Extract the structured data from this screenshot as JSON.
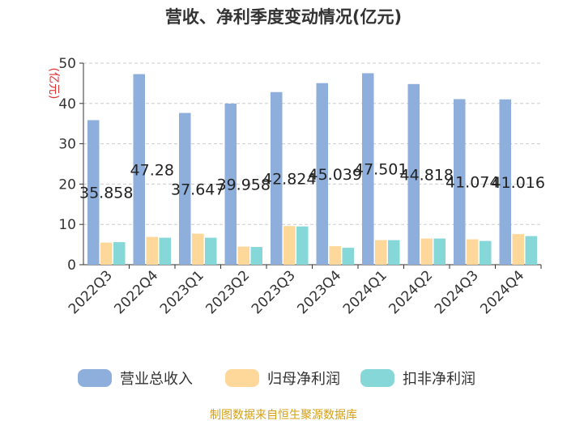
{
  "chart_data": {
    "type": "bar",
    "title": "营收、净利季度变动情况(亿元)",
    "y_unit": "(亿元)",
    "ylim": [
      0,
      50
    ],
    "yticks": [
      0,
      10,
      20,
      30,
      40,
      50
    ],
    "grid": "horizontal dashed",
    "legend_position": "bottom",
    "categories": [
      "2022Q3",
      "2022Q4",
      "2023Q1",
      "2023Q2",
      "2023Q3",
      "2023Q4",
      "2024Q1",
      "2024Q2",
      "2024Q3",
      "2024Q4"
    ],
    "series": [
      {
        "name": "营业总收入",
        "color": "#8EAEDC",
        "values": [
          35.858,
          47.28,
          37.647,
          39.958,
          42.824,
          45.039,
          47.501,
          44.818,
          41.074,
          41.016
        ],
        "labels": [
          "35.858",
          "47.28",
          "37.647",
          "39.958",
          "42.824",
          "45.039",
          "47.501",
          "44.818",
          "41.074",
          "41.016"
        ]
      },
      {
        "name": "归母净利润",
        "color": "#FDD89A",
        "values": [
          5.5,
          6.9,
          7.7,
          4.5,
          9.6,
          4.6,
          6.1,
          6.5,
          6.3,
          7.6
        ]
      },
      {
        "name": "扣非净利润",
        "color": "#86D8D8",
        "values": [
          5.6,
          6.7,
          6.7,
          4.4,
          9.5,
          4.2,
          6.1,
          6.5,
          5.9,
          7.1
        ]
      }
    ]
  },
  "source": {
    "text": "制图数据来自恒生聚源数据库",
    "color": "#D4A017"
  },
  "colors": {
    "unit": "#E03030",
    "axis": "#333333",
    "grid": "#CCCCCC"
  }
}
